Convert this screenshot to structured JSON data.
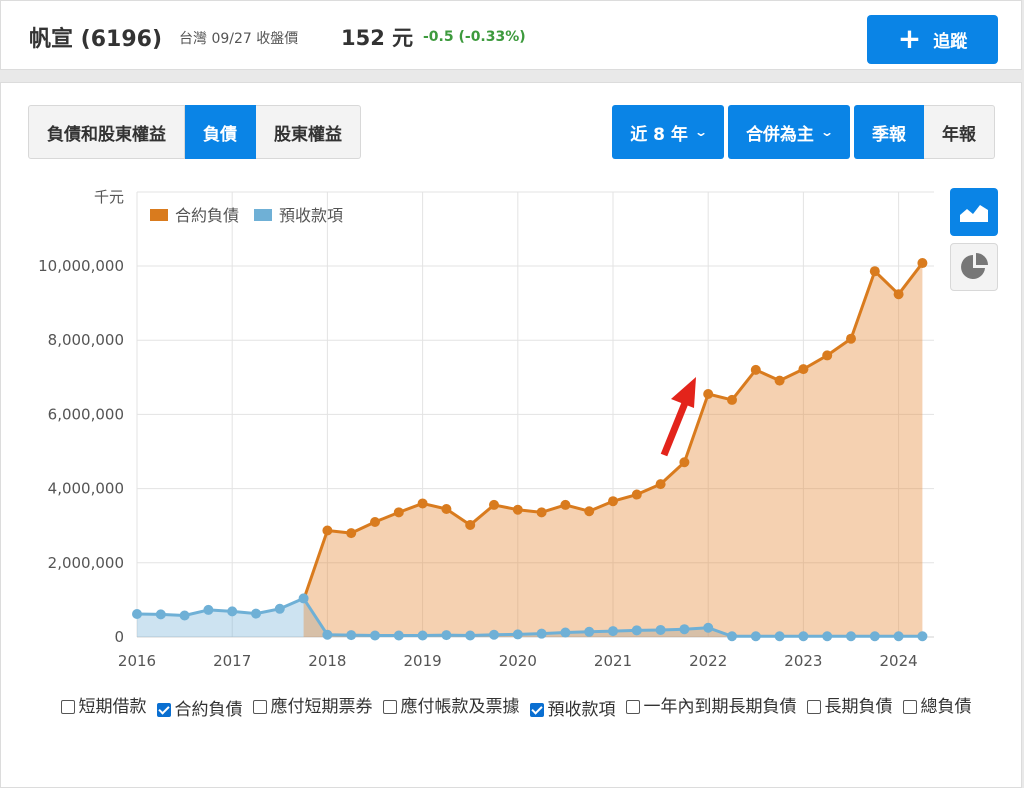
{
  "header": {
    "name": "帆宣 (6196)",
    "meta": "台灣 09/27 收盤價",
    "price": "152 元",
    "change": "-0.5 (-0.33%)",
    "track_label": "追蹤"
  },
  "tabs": [
    {
      "label": "負債和股東權益",
      "active": false
    },
    {
      "label": "負債",
      "active": true
    },
    {
      "label": "股東權益",
      "active": false
    }
  ],
  "controls": {
    "range_label": "近 8 年",
    "basis_label": "合併為主",
    "quarterly_label": "季報",
    "annual_label": "年報"
  },
  "side_buttons": {
    "area_icon": "area-chart-icon",
    "pie_icon": "pie-chart-icon"
  },
  "colors": {
    "contract": "#d97b1e",
    "advance": "#6fb0d6",
    "accent": "#0a84e6"
  },
  "checkboxes": [
    {
      "label": "短期借款",
      "checked": false
    },
    {
      "label": "合約負債",
      "checked": true
    },
    {
      "label": "應付短期票券",
      "checked": false
    },
    {
      "label": "應付帳款及票據",
      "checked": false
    },
    {
      "label": "預收款項",
      "checked": true
    },
    {
      "label": "一年內到期長期負債",
      "checked": false
    },
    {
      "label": "長期負債",
      "checked": false
    },
    {
      "label": "總負債",
      "checked": false
    }
  ],
  "chart_data": {
    "type": "area",
    "unit_label": "千元",
    "xlim": [
      2016,
      2024.33
    ],
    "ylim": [
      0,
      10500000
    ],
    "yticks": [
      0,
      2000000,
      4000000,
      6000000,
      8000000,
      10000000
    ],
    "ytick_labels": [
      "0",
      "2,000,000",
      "4,000,000",
      "6,000,000",
      "8,000,000",
      "10,000,000"
    ],
    "xticks": [
      2016,
      2017,
      2018,
      2019,
      2020,
      2021,
      2022,
      2023,
      2024
    ],
    "xtick_labels": [
      "2016",
      "2017",
      "2018",
      "2019",
      "2020",
      "2021",
      "2022",
      "2023",
      "2024"
    ],
    "grid": true,
    "legend_position": "top-left",
    "annotation": "red-arrow",
    "series": [
      {
        "name": "合約負債",
        "color": "#d97b1e",
        "points": [
          [
            2017.75,
            1000000
          ],
          [
            2018.0,
            2870000
          ],
          [
            2018.25,
            2800000
          ],
          [
            2018.5,
            3100000
          ],
          [
            2018.75,
            3360000
          ],
          [
            2019.0,
            3600000
          ],
          [
            2019.25,
            3450000
          ],
          [
            2019.5,
            3020000
          ],
          [
            2019.75,
            3560000
          ],
          [
            2020.0,
            3430000
          ],
          [
            2020.25,
            3360000
          ],
          [
            2020.5,
            3560000
          ],
          [
            2020.75,
            3390000
          ],
          [
            2021.0,
            3660000
          ],
          [
            2021.25,
            3840000
          ],
          [
            2021.5,
            4120000
          ],
          [
            2021.75,
            4710000
          ],
          [
            2022.0,
            6550000
          ],
          [
            2022.25,
            6390000
          ],
          [
            2022.5,
            7200000
          ],
          [
            2022.75,
            6910000
          ],
          [
            2023.0,
            7220000
          ],
          [
            2023.25,
            7590000
          ],
          [
            2023.5,
            8040000
          ],
          [
            2023.75,
            9860000
          ],
          [
            2024.0,
            9240000
          ],
          [
            2024.25,
            10080000
          ]
        ]
      },
      {
        "name": "預收款項",
        "color": "#6fb0d6",
        "points": [
          [
            2016.0,
            620000
          ],
          [
            2016.25,
            610000
          ],
          [
            2016.5,
            580000
          ],
          [
            2016.75,
            730000
          ],
          [
            2017.0,
            690000
          ],
          [
            2017.25,
            630000
          ],
          [
            2017.5,
            760000
          ],
          [
            2017.75,
            1040000
          ],
          [
            2018.0,
            60000
          ],
          [
            2018.25,
            50000
          ],
          [
            2018.5,
            40000
          ],
          [
            2018.75,
            40000
          ],
          [
            2019.0,
            40000
          ],
          [
            2019.25,
            50000
          ],
          [
            2019.5,
            40000
          ],
          [
            2019.75,
            60000
          ],
          [
            2020.0,
            70000
          ],
          [
            2020.25,
            90000
          ],
          [
            2020.5,
            120000
          ],
          [
            2020.75,
            140000
          ],
          [
            2021.0,
            160000
          ],
          [
            2021.25,
            180000
          ],
          [
            2021.5,
            190000
          ],
          [
            2021.75,
            210000
          ],
          [
            2022.0,
            250000
          ],
          [
            2022.25,
            20000
          ],
          [
            2022.5,
            20000
          ],
          [
            2022.75,
            20000
          ],
          [
            2023.0,
            20000
          ],
          [
            2023.25,
            20000
          ],
          [
            2023.5,
            20000
          ],
          [
            2023.75,
            20000
          ],
          [
            2024.0,
            20000
          ],
          [
            2024.25,
            20000
          ]
        ]
      }
    ]
  }
}
